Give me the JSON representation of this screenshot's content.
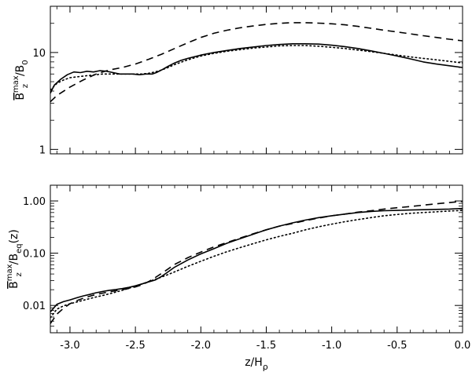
{
  "chart_data": [
    {
      "type": "line",
      "ylabel": {
        "main": "B",
        "sup": "max",
        "sub": "z",
        "tail": "/B",
        "tail_sub": "0"
      },
      "xlim": [
        -3.15,
        0.0
      ],
      "ylim": [
        0.9,
        30
      ],
      "yscale": "log",
      "xticks": [
        -3.0,
        -2.5,
        -2.0,
        -1.5,
        -1.0,
        -0.5,
        0.0
      ],
      "yticks": [
        1,
        10
      ],
      "yticklabels": [
        "1",
        "10"
      ],
      "grid": false,
      "series": [
        {
          "style": "solid",
          "x": [
            -3.15,
            -3.12,
            -3.07,
            -3.02,
            -2.97,
            -2.92,
            -2.87,
            -2.82,
            -2.77,
            -2.72,
            -2.67,
            -2.62,
            -2.57,
            -2.52,
            -2.47,
            -2.42,
            -2.37,
            -2.34,
            -2.3,
            -2.25,
            -2.2,
            -2.15,
            -2.1,
            -2.0,
            -1.9,
            -1.8,
            -1.7,
            -1.6,
            -1.5,
            -1.4,
            -1.3,
            -1.2,
            -1.1,
            -1.0,
            -0.9,
            -0.8,
            -0.7,
            -0.6,
            -0.5,
            -0.4,
            -0.3,
            -0.2,
            -0.1,
            0.0
          ],
          "y": [
            3.8,
            4.6,
            5.3,
            5.9,
            6.3,
            6.2,
            6.4,
            6.3,
            6.5,
            6.4,
            6.2,
            6.0,
            6.0,
            6.0,
            5.9,
            6.0,
            6.0,
            6.2,
            6.6,
            7.2,
            7.8,
            8.3,
            8.7,
            9.4,
            10.0,
            10.5,
            11.0,
            11.4,
            11.8,
            12.1,
            12.3,
            12.3,
            12.2,
            11.9,
            11.5,
            11.0,
            10.4,
            9.8,
            9.2,
            8.6,
            8.0,
            7.6,
            7.3,
            7.0
          ]
        },
        {
          "style": "dashed",
          "x": [
            -3.15,
            -3.1,
            -3.0,
            -2.9,
            -2.8,
            -2.7,
            -2.6,
            -2.5,
            -2.4,
            -2.3,
            -2.2,
            -2.1,
            -2.0,
            -1.9,
            -1.8,
            -1.7,
            -1.6,
            -1.5,
            -1.4,
            -1.3,
            -1.2,
            -1.1,
            -1.0,
            -0.9,
            -0.8,
            -0.7,
            -0.6,
            -0.5,
            -0.4,
            -0.3,
            -0.2,
            -0.1,
            0.0
          ],
          "y": [
            3.1,
            3.6,
            4.4,
            5.2,
            6.0,
            6.6,
            7.0,
            7.6,
            8.5,
            9.6,
            11.0,
            12.6,
            14.3,
            15.8,
            17.0,
            18.0,
            18.8,
            19.5,
            20.0,
            20.3,
            20.3,
            20.1,
            19.8,
            19.3,
            18.6,
            17.8,
            17.0,
            16.3,
            15.6,
            14.9,
            14.3,
            13.7,
            13.2
          ]
        },
        {
          "style": "dotted",
          "x": [
            -3.15,
            -3.1,
            -3.05,
            -3.0,
            -2.95,
            -2.9,
            -2.85,
            -2.8,
            -2.75,
            -2.7,
            -2.65,
            -2.6,
            -2.55,
            -2.5,
            -2.45,
            -2.4,
            -2.35,
            -2.3,
            -2.25,
            -2.2,
            -2.1,
            -2.0,
            -1.9,
            -1.8,
            -1.7,
            -1.6,
            -1.5,
            -1.4,
            -1.3,
            -1.2,
            -1.1,
            -1.0,
            -0.9,
            -0.8,
            -0.7,
            -0.6,
            -0.5,
            -0.4,
            -0.3,
            -0.2,
            -0.1,
            0.0
          ],
          "y": [
            4.1,
            4.8,
            5.2,
            5.5,
            5.6,
            5.7,
            5.8,
            5.9,
            6.0,
            6.0,
            6.0,
            6.0,
            6.0,
            6.0,
            6.0,
            6.1,
            6.3,
            6.6,
            7.0,
            7.5,
            8.4,
            9.2,
            9.8,
            10.3,
            10.7,
            11.1,
            11.4,
            11.7,
            11.8,
            11.8,
            11.6,
            11.3,
            11.0,
            10.6,
            10.2,
            9.8,
            9.4,
            9.0,
            8.7,
            8.4,
            8.1,
            7.8
          ]
        }
      ]
    },
    {
      "type": "line",
      "xlabel": {
        "main": "z/H",
        "sub": "ρ"
      },
      "ylabel": {
        "main": "B",
        "sup": "max",
        "sub": "z",
        "tail": "/B",
        "tail_sub": "eq",
        "after": "(z)"
      },
      "xlim": [
        -3.15,
        0.0
      ],
      "ylim": [
        0.003,
        2.0
      ],
      "yscale": "log",
      "xticks": [
        -3.0,
        -2.5,
        -2.0,
        -1.5,
        -1.0,
        -0.5,
        0.0
      ],
      "xticklabels": [
        "-3.0",
        "-2.5",
        "-2.0",
        "-1.5",
        "-1.0",
        "-0.5",
        "0.0"
      ],
      "yticks": [
        0.01,
        0.1,
        1.0
      ],
      "yticklabels": [
        "0.01",
        "0.10",
        "1.00"
      ],
      "grid": false,
      "series": [
        {
          "style": "solid",
          "x": [
            -3.15,
            -3.1,
            -3.05,
            -3.0,
            -2.95,
            -2.9,
            -2.85,
            -2.8,
            -2.75,
            -2.7,
            -2.65,
            -2.6,
            -2.55,
            -2.5,
            -2.45,
            -2.4,
            -2.35,
            -2.3,
            -2.25,
            -2.2,
            -2.1,
            -2.0,
            -1.9,
            -1.8,
            -1.7,
            -1.6,
            -1.5,
            -1.4,
            -1.3,
            -1.2,
            -1.1,
            -1.0,
            -0.9,
            -0.8,
            -0.7,
            -0.6,
            -0.5,
            -0.4,
            -0.3,
            -0.2,
            -0.1,
            0.0
          ],
          "y": [
            0.0075,
            0.0105,
            0.0118,
            0.0128,
            0.014,
            0.0152,
            0.0162,
            0.0175,
            0.0185,
            0.0195,
            0.0202,
            0.021,
            0.0222,
            0.0238,
            0.0258,
            0.0282,
            0.0305,
            0.036,
            0.044,
            0.054,
            0.074,
            0.097,
            0.122,
            0.155,
            0.19,
            0.23,
            0.28,
            0.33,
            0.38,
            0.43,
            0.48,
            0.52,
            0.56,
            0.6,
            0.63,
            0.65,
            0.66,
            0.67,
            0.68,
            0.69,
            0.7,
            0.72
          ]
        },
        {
          "style": "dashed",
          "x": [
            -3.15,
            -3.1,
            -3.05,
            -3.0,
            -2.95,
            -2.9,
            -2.85,
            -2.8,
            -2.75,
            -2.7,
            -2.65,
            -2.6,
            -2.55,
            -2.5,
            -2.45,
            -2.4,
            -2.35,
            -2.3,
            -2.25,
            -2.2,
            -2.1,
            -2.0,
            -1.9,
            -1.8,
            -1.7,
            -1.6,
            -1.5,
            -1.4,
            -1.3,
            -1.2,
            -1.1,
            -1.0,
            -0.9,
            -0.8,
            -0.7,
            -0.6,
            -0.5,
            -0.4,
            -0.3,
            -0.2,
            -0.1,
            0.0
          ],
          "y": [
            0.0045,
            0.0068,
            0.0088,
            0.0108,
            0.0123,
            0.0137,
            0.015,
            0.0162,
            0.0172,
            0.0182,
            0.0191,
            0.02,
            0.0211,
            0.0226,
            0.0248,
            0.0285,
            0.034,
            0.041,
            0.05,
            0.061,
            0.082,
            0.105,
            0.132,
            0.16,
            0.195,
            0.235,
            0.28,
            0.33,
            0.37,
            0.42,
            0.47,
            0.52,
            0.56,
            0.61,
            0.65,
            0.7,
            0.74,
            0.78,
            0.83,
            0.88,
            0.93,
            0.98
          ]
        },
        {
          "style": "dotted",
          "x": [
            -3.15,
            -3.1,
            -3.05,
            -3.0,
            -2.95,
            -2.9,
            -2.85,
            -2.8,
            -2.75,
            -2.7,
            -2.65,
            -2.6,
            -2.55,
            -2.5,
            -2.45,
            -2.4,
            -2.35,
            -2.3,
            -2.25,
            -2.2,
            -2.1,
            -2.0,
            -1.9,
            -1.8,
            -1.7,
            -1.6,
            -1.5,
            -1.4,
            -1.3,
            -1.2,
            -1.1,
            -1.0,
            -0.9,
            -0.8,
            -0.7,
            -0.6,
            -0.5,
            -0.4,
            -0.3,
            -0.2,
            -0.1,
            0.0
          ],
          "y": [
            0.0058,
            0.0085,
            0.0098,
            0.0108,
            0.0116,
            0.0125,
            0.0135,
            0.0145,
            0.0155,
            0.0167,
            0.018,
            0.0195,
            0.0213,
            0.0233,
            0.0258,
            0.0285,
            0.0315,
            0.035,
            0.039,
            0.044,
            0.056,
            0.07,
            0.087,
            0.107,
            0.128,
            0.152,
            0.18,
            0.21,
            0.24,
            0.28,
            0.32,
            0.36,
            0.4,
            0.44,
            0.48,
            0.52,
            0.55,
            0.58,
            0.6,
            0.62,
            0.64,
            0.66
          ]
        }
      ]
    }
  ]
}
